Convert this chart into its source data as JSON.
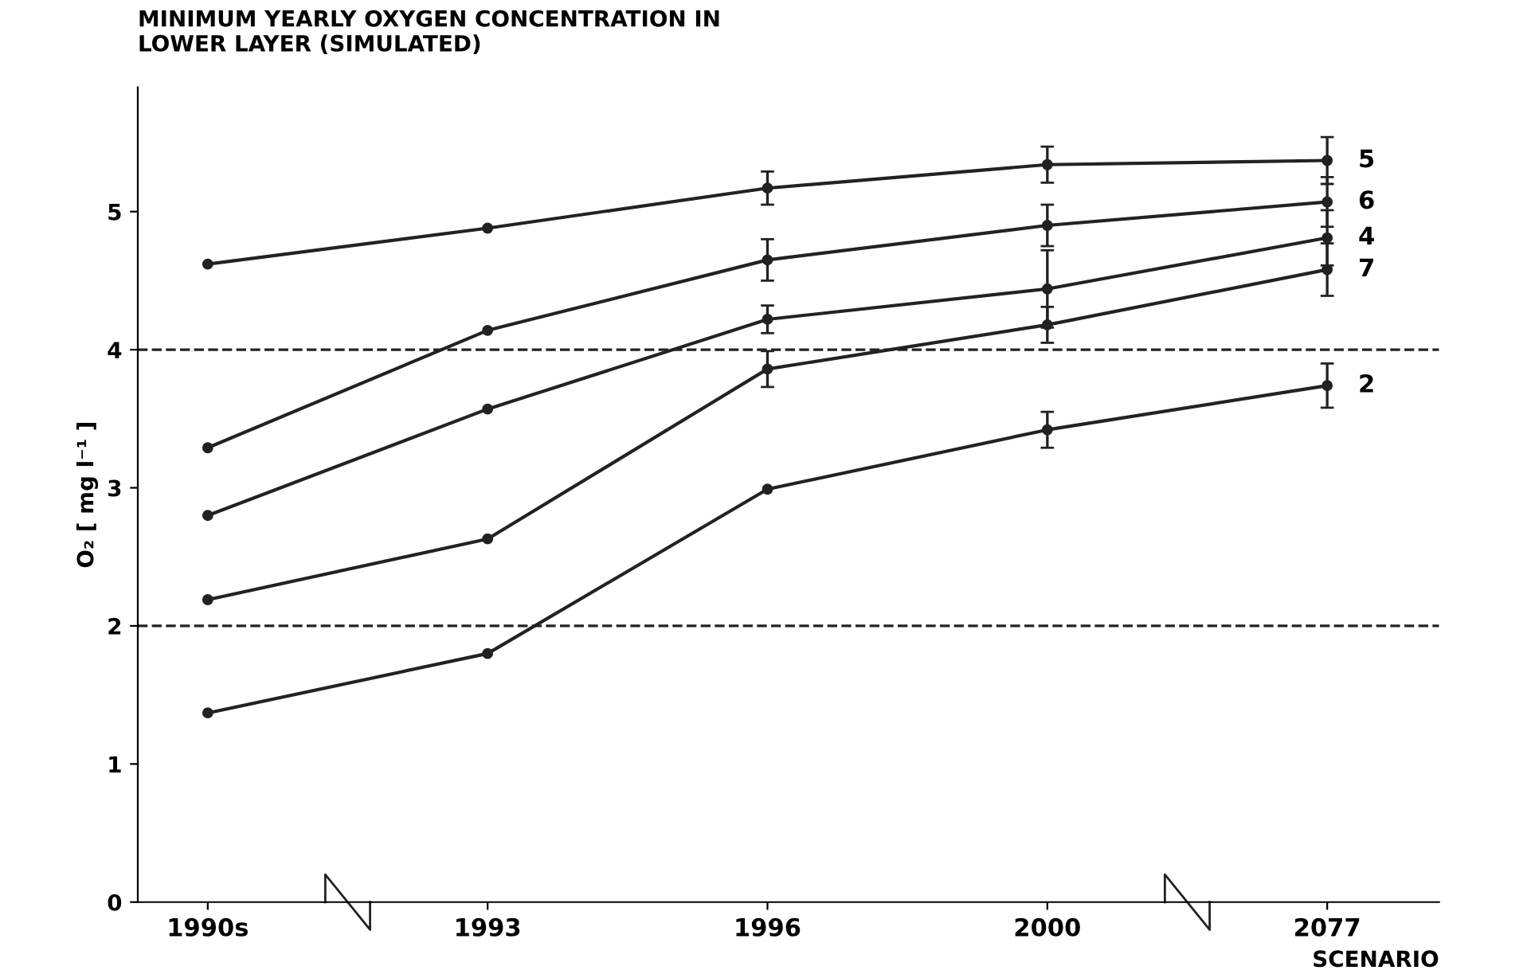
{
  "chart_data": {
    "type": "line",
    "title": "MINIMUM YEARLY OXYGEN CONCENTRATION IN\nLOWER LAYER (SIMULATED)",
    "xlabel": "SCENARIO",
    "ylabel": "O₂ [ mg l⁻¹ ]",
    "categories": [
      "1990s",
      "1993",
      "1996",
      "2000",
      "2077"
    ],
    "series": [
      {
        "name": "5",
        "color": "#222222",
        "values": [
          4.62,
          4.88,
          5.17,
          5.34,
          5.37
        ],
        "errors": [
          null,
          null,
          0.12,
          0.13,
          0.17
        ]
      },
      {
        "name": "6",
        "color": "#222222",
        "values": [
          3.29,
          4.14,
          4.65,
          4.9,
          5.07
        ],
        "errors": [
          null,
          null,
          0.15,
          0.15,
          0.18
        ]
      },
      {
        "name": "4",
        "color": "#222222",
        "values": [
          2.8,
          3.57,
          4.22,
          4.44,
          4.81
        ],
        "errors": [
          null,
          null,
          0.1,
          0.28,
          0.2
        ]
      },
      {
        "name": "7",
        "color": "#222222",
        "values": [
          2.19,
          2.63,
          3.86,
          4.18,
          4.58
        ],
        "errors": [
          null,
          null,
          0.13,
          0.13,
          0.19
        ]
      },
      {
        "name": "2",
        "color": "#222222",
        "values": [
          1.37,
          1.8,
          2.99,
          3.42,
          3.74
        ],
        "errors": [
          null,
          null,
          null,
          0.13,
          0.16
        ]
      }
    ],
    "ylim": [
      0,
      5.9
    ],
    "yticks": [
      0,
      1,
      2,
      3,
      4,
      5
    ],
    "ref_lines": [
      {
        "axis": "y",
        "value": 4,
        "line_style": "dashed",
        "color": "#222222"
      },
      {
        "axis": "y",
        "value": 2,
        "line_style": "dashed",
        "color": "#222222"
      }
    ],
    "marker": "circle",
    "line_style": "solid",
    "grid": false
  }
}
